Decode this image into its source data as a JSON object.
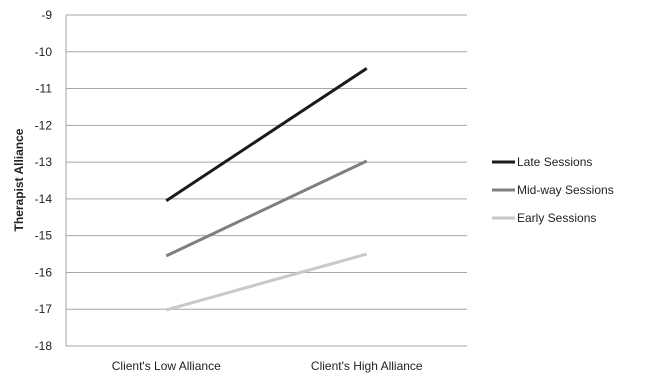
{
  "chart_data": {
    "type": "line",
    "ylabel": "Therapist Alliance",
    "xlabel": "",
    "categories": [
      "Client's Low Alliance",
      "Client's High Alliance"
    ],
    "ylim": [
      -18,
      -9
    ],
    "yticks": [
      -9,
      -10,
      -11,
      -12,
      -13,
      -14,
      -15,
      -16,
      -17,
      -18
    ],
    "grid": "horizontal",
    "legend_position": "right",
    "series": [
      {
        "name": "Late Sessions",
        "values": [
          -14.05,
          -10.45
        ],
        "color": "#1a1a1a"
      },
      {
        "name": "Mid-way Sessions",
        "values": [
          -15.55,
          -12.97
        ],
        "color": "#7f7f7f"
      },
      {
        "name": "Early Sessions",
        "values": [
          -17.02,
          -15.5
        ],
        "color": "#c9c9c9"
      }
    ]
  }
}
